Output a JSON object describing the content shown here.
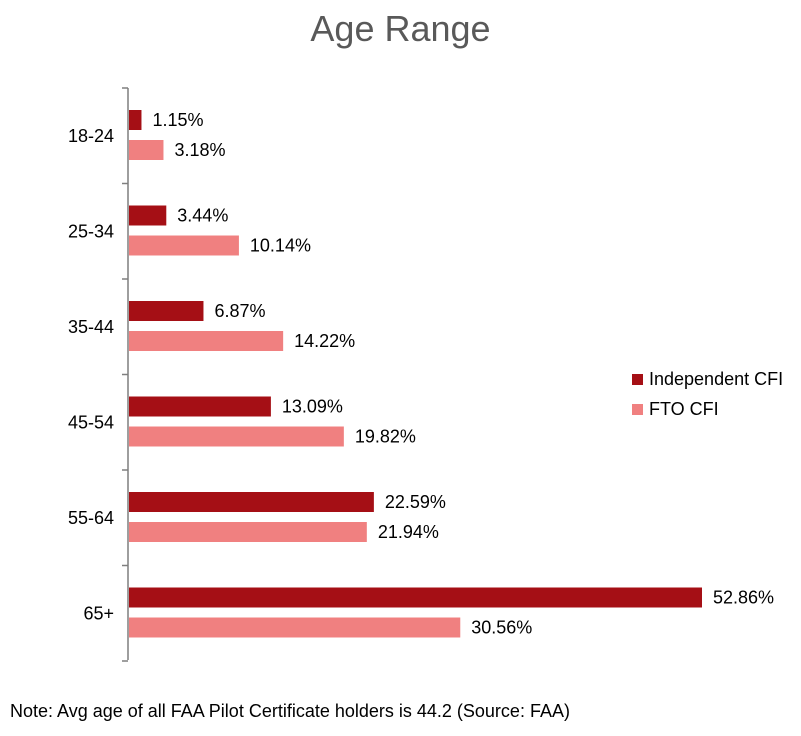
{
  "chart_data": {
    "type": "bar",
    "orientation": "horizontal",
    "title": "Age Range",
    "categories": [
      "18-24",
      "25-34",
      "35-44",
      "45-54",
      "55-64",
      "65+"
    ],
    "series": [
      {
        "name": "Independent CFI",
        "color": "#A50F15",
        "values": [
          1.15,
          3.44,
          6.87,
          13.09,
          22.59,
          52.86
        ]
      },
      {
        "name": "FTO CFI",
        "color": "#F08080",
        "values": [
          3.18,
          10.14,
          14.22,
          19.82,
          21.94,
          30.56
        ]
      }
    ],
    "value_suffix": "%",
    "legend_position": "right",
    "grid": false
  },
  "note": "Note: Avg age of all FAA Pilot Certificate holders is 44.2 (Source: FAA)"
}
